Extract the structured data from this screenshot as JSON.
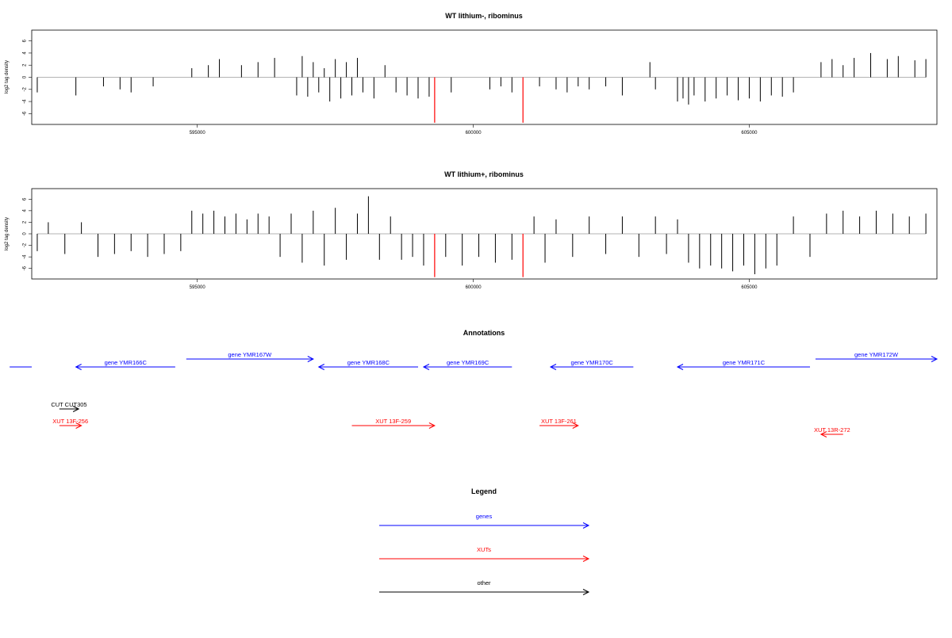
{
  "chart_data": [
    {
      "type": "bar",
      "title": "WT lithium-, ribominus",
      "ylabel": "log2 tag density",
      "xlabel": "",
      "xlim": [
        592000,
        608400
      ],
      "ylim": [
        -7,
        7
      ],
      "yticks": [
        -6,
        -4,
        -2,
        0,
        2,
        4,
        6
      ],
      "xticks": [
        595000,
        600000,
        605000
      ],
      "grid": false,
      "series": [
        {
          "values_description": "",
          "x": [
            592100,
            592800,
            593300,
            593600,
            593800,
            594200,
            594900,
            595200,
            595400,
            595800,
            596100,
            596400,
            596800,
            596900,
            597000,
            597100,
            597200,
            597300,
            597400,
            597500,
            597600,
            597700,
            597800,
            597900,
            598000,
            598200,
            598400,
            598600,
            598800,
            599000,
            599200,
            599600,
            600300,
            600500,
            600700,
            601200,
            601500,
            601700,
            601900,
            602100,
            602400,
            602700,
            603200,
            603300,
            603700,
            603800,
            603900,
            604000,
            604200,
            604400,
            604600,
            604800,
            605000,
            605200,
            605400,
            605600,
            605800,
            606300,
            606500,
            606700,
            606900,
            607200,
            607500,
            607700,
            608000,
            608200
          ],
          "values": [
            -2.5,
            -3,
            -1.5,
            -2,
            -2.5,
            -1.5,
            1.5,
            2,
            3,
            2,
            2.5,
            3.2,
            -3,
            3.5,
            -3.2,
            2.5,
            -2.5,
            1.5,
            -4,
            3,
            -3.5,
            2.5,
            -3,
            3.2,
            -2.5,
            -3.5,
            2,
            -2.5,
            -3,
            -3.5,
            -3.2,
            -2.5,
            -2,
            -1.5,
            -2.5,
            -1.5,
            -2,
            -2.5,
            -1.5,
            -2,
            -1.5,
            -3,
            2.5,
            -2,
            -4,
            -3.5,
            -4.5,
            -3,
            -4,
            -3.5,
            -3,
            -3.8,
            -3.5,
            -4,
            -3,
            -3.2,
            -2.5,
            2.5,
            3,
            2,
            3.2,
            4,
            3,
            3.5,
            2.8,
            3
          ]
        },
        {
          "name": "",
          "color": "#ff0000",
          "x": [
            599300,
            600900
          ],
          "values": [
            -7.5,
            -7.5
          ]
        }
      ]
    },
    {
      "type": "bar",
      "title": "WT lithium+, ribominus",
      "ylabel": "log2 tag density",
      "xlabel": "",
      "xlim": [
        592000,
        608400
      ],
      "ylim": [
        -7,
        7
      ],
      "yticks": [
        -6,
        -4,
        -2,
        0,
        2,
        4,
        6
      ],
      "xticks": [
        595000,
        600000,
        605000
      ],
      "grid": false,
      "series": [
        {
          "x": [
            592100,
            592300,
            592600,
            592900,
            593200,
            593500,
            593800,
            594100,
            594400,
            594700,
            594900,
            595100,
            595300,
            595500,
            595700,
            595900,
            596100,
            596300,
            596500,
            596700,
            596900,
            597100,
            597300,
            597500,
            597700,
            597900,
            598100,
            598300,
            598500,
            598700,
            598900,
            599100,
            599500,
            599800,
            600100,
            600400,
            600700,
            601100,
            601300,
            601500,
            601800,
            602100,
            602400,
            602700,
            603000,
            603300,
            603500,
            603700,
            603900,
            604100,
            604300,
            604500,
            604700,
            604900,
            605100,
            605300,
            605500,
            605800,
            606100,
            606400,
            606700,
            607000,
            607300,
            607600,
            607900,
            608200
          ],
          "values": [
            -3,
            2,
            -3.5,
            2,
            -4,
            -3.5,
            -3,
            -4,
            -3.5,
            -3,
            4,
            3.5,
            4,
            3,
            3.5,
            2.5,
            3.5,
            3,
            -4,
            3.5,
            -5,
            4,
            -5.5,
            4.5,
            -4.5,
            3.5,
            6.5,
            -4.5,
            3,
            -4.5,
            -4,
            -5.5,
            -4,
            -5.5,
            -4,
            -5,
            -4.5,
            3,
            -5,
            2.5,
            -4,
            3,
            -3.5,
            3,
            -4,
            3,
            -3.5,
            2.5,
            -5,
            -6,
            -5.5,
            -6,
            -6.5,
            -5.5,
            -7,
            -6,
            -5.5,
            3,
            -4,
            3.5,
            4,
            3,
            4,
            3.5,
            3,
            3.5
          ]
        },
        {
          "name": "",
          "color": "#ff0000",
          "x": [
            599300,
            600900
          ],
          "values": [
            -7.5,
            -7.5
          ]
        }
      ]
    }
  ],
  "annotations": {
    "title": "Annotations",
    "genes": [
      {
        "label": "",
        "x1": 591600,
        "x2": 592000,
        "dir": "none",
        "row": 1
      },
      {
        "label": "gene YMR166C",
        "x1": 592800,
        "x2": 594600,
        "dir": "left",
        "row": 1
      },
      {
        "label": "gene YMR167W",
        "x1": 594800,
        "x2": 597100,
        "dir": "right",
        "row": 0
      },
      {
        "label": "gene YMR168C",
        "x1": 597200,
        "x2": 599000,
        "dir": "left",
        "row": 1
      },
      {
        "label": "gene YMR169C",
        "x1": 599100,
        "x2": 600700,
        "dir": "left",
        "row": 1
      },
      {
        "label": "gene YMR170C",
        "x1": 601400,
        "x2": 602900,
        "dir": "left",
        "row": 1
      },
      {
        "label": "gene YMR171C",
        "x1": 603700,
        "x2": 606100,
        "dir": "left",
        "row": 1
      },
      {
        "label": "gene YMR172W",
        "x1": 606200,
        "x2": 608400,
        "dir": "right",
        "row": 0
      }
    ],
    "xuts": [
      {
        "label": "XUT 13F-256",
        "x1": 592500,
        "x2": 592900,
        "dir": "right",
        "row": 0
      },
      {
        "label": "XUT 13F-259",
        "x1": 597800,
        "x2": 599300,
        "dir": "right",
        "row": 0
      },
      {
        "label": "XUT 13F-261",
        "x1": 601200,
        "x2": 601900,
        "dir": "right",
        "row": 0
      },
      {
        "label": "XUT 13R-272",
        "x1": 606300,
        "x2": 606700,
        "dir": "left",
        "row": 1
      }
    ],
    "others": [
      {
        "label": "CUT CUT305",
        "x1": 592500,
        "x2": 592850,
        "dir": "right"
      }
    ]
  },
  "legend": {
    "title": "Legend",
    "items": [
      {
        "label": "genes",
        "color": "#0000ff"
      },
      {
        "label": "XUTs",
        "color": "#ff0000"
      },
      {
        "label": "other",
        "color": "#000000"
      }
    ]
  },
  "colors": {
    "gene": "#0000ff",
    "xut": "#ff0000",
    "other": "#000000",
    "axis": "#000000",
    "bar": "#000000",
    "baseline": "#9a9a9a"
  }
}
